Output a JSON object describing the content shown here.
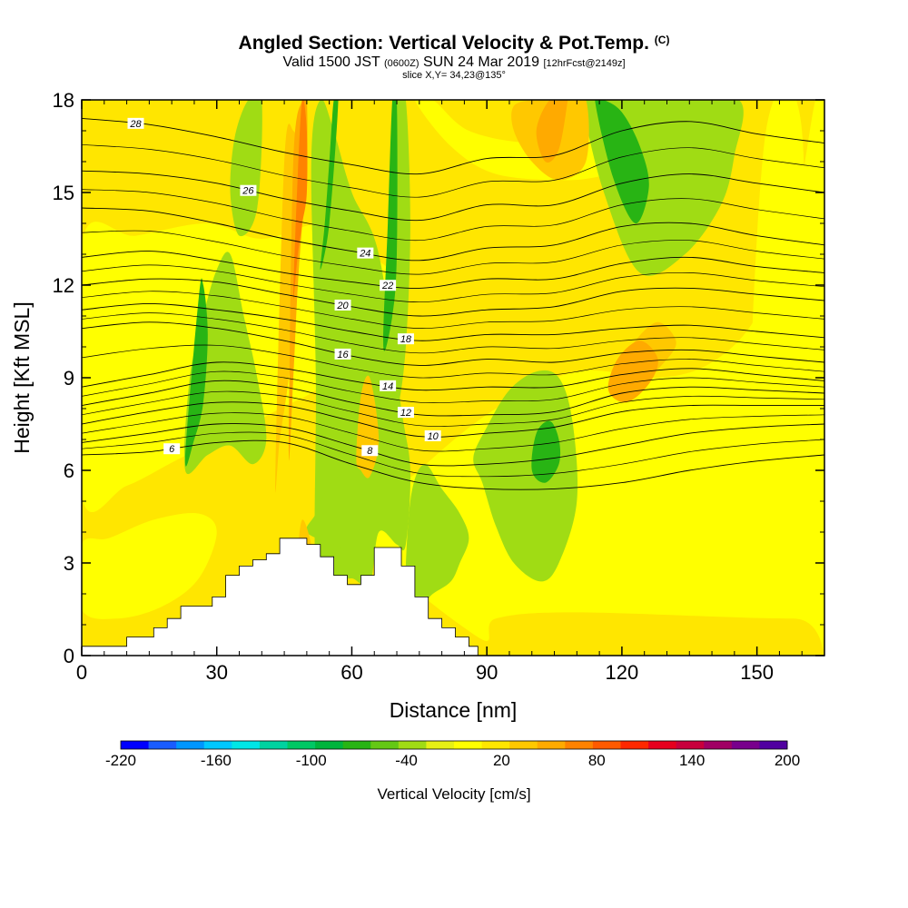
{
  "header": {
    "title": "Angled Section: Vertical Velocity & Pot.Temp.",
    "title_mark": "(C)",
    "valid_prefix": "Valid 1500 JST",
    "valid_utc": "(0600Z)",
    "valid_date": "SUN 24 Mar 2019",
    "forecast": "[12hrFcst@2149z]",
    "slice": "slice X,Y= 34,23@135°"
  },
  "chart_data": {
    "type": "heatmap",
    "xlabel": "Distance [nm]",
    "ylabel": "Height [Kft MSL]",
    "xlim": [
      0,
      165
    ],
    "ylim": [
      0,
      18
    ],
    "x_ticks": [
      0,
      30,
      60,
      90,
      120,
      150
    ],
    "y_ticks": [
      0,
      3,
      6,
      9,
      12,
      15,
      18
    ],
    "colorbar": {
      "title": "Vertical Velocity [cm/s]",
      "tick_labels": [
        -220,
        -160,
        -100,
        -40,
        20,
        80,
        140,
        200
      ],
      "colors": [
        "#0000ff",
        "#1a5cff",
        "#0096ff",
        "#00c8ff",
        "#00e6e6",
        "#00d2a0",
        "#00c864",
        "#00b43c",
        "#28b414",
        "#64c814",
        "#a0dc14",
        "#e6f014",
        "#ffff00",
        "#ffe600",
        "#ffc800",
        "#ffaa00",
        "#ff8200",
        "#ff5a00",
        "#ff2800",
        "#e6001e",
        "#c8003c",
        "#a00064",
        "#78008c",
        "#5000a0"
      ]
    },
    "velocity_field": {
      "background_color": "#ffe600",
      "regions": [
        {
          "color": "#ffff00",
          "x": [
            88,
            92,
            110,
            158,
            165,
            165,
            163,
            158,
            150,
            140,
            128,
            110,
            92,
            75,
            62
          ],
          "y": [
            0.6,
            1.2,
            1.4,
            1.2,
            1.5,
            18,
            18,
            14,
            11,
            9.5,
            9,
            9.2,
            8,
            6,
            4
          ]
        },
        {
          "color": "#ffff00",
          "x": [
            0,
            10,
            22,
            34,
            44,
            52,
            58,
            64,
            70,
            64,
            54,
            40,
            28,
            12,
            0
          ],
          "y": [
            5.2,
            5.5,
            6.4,
            7.2,
            8,
            8.6,
            9.5,
            10,
            12,
            13,
            14,
            13.5,
            14,
            13.6,
            13.4
          ]
        },
        {
          "color": "#ffff00",
          "x": [
            0,
            8,
            18,
            26,
            30,
            26,
            16,
            6,
            0
          ],
          "y": [
            1.5,
            1.2,
            1.6,
            2.5,
            4,
            4.6,
            4.4,
            3.8,
            3.6
          ]
        },
        {
          "color": "#ffff00",
          "x": [
            74,
            82,
            92,
            108,
            118,
            128,
            138,
            144,
            140,
            128,
            114,
            100,
            86,
            78
          ],
          "y": [
            18,
            16.5,
            15.6,
            15.4,
            15.6,
            15.8,
            16.4,
            17.2,
            18,
            17.4,
            16.8,
            16.6,
            17,
            18
          ]
        },
        {
          "color": "#ffff00",
          "x": [
            148,
            152,
            156,
            160,
            160,
            152
          ],
          "y": [
            6,
            6.4,
            5.6,
            5,
            17,
            17
          ]
        },
        {
          "color": "#a0dc14",
          "x": [
            23,
            28,
            33,
            38,
            41,
            39,
            36,
            33,
            30,
            27,
            24
          ],
          "y": [
            6,
            6.5,
            6.8,
            6.2,
            7,
            9,
            11,
            13,
            12.5,
            11,
            9
          ]
        },
        {
          "color": "#a0dc14",
          "x": [
            35,
            39,
            40,
            37,
            34,
            33
          ],
          "y": [
            13.6,
            14.5,
            18,
            18,
            16.8,
            15
          ]
        },
        {
          "color": "#a0dc14",
          "x": [
            52,
            56,
            60,
            64,
            66,
            70,
            72,
            73,
            71,
            66,
            60,
            56,
            53,
            51,
            52
          ],
          "y": [
            2.6,
            2.4,
            2.5,
            2.3,
            4,
            3.6,
            3.6,
            6,
            8,
            13,
            15,
            17,
            18,
            16,
            9
          ]
        },
        {
          "color": "#a0dc14",
          "x": [
            56,
            60,
            62,
            60,
            55,
            52,
            50
          ],
          "y": [
            3.6,
            3.4,
            4.6,
            6,
            5.5,
            4.6,
            4
          ]
        },
        {
          "color": "#a0dc14",
          "x": [
            68,
            70,
            72,
            73,
            72,
            70,
            68
          ],
          "y": [
            9,
            8,
            10,
            14,
            18,
            18,
            13
          ]
        },
        {
          "color": "#a0dc14",
          "x": [
            72,
            75,
            78,
            82,
            84,
            86,
            84,
            80,
            76,
            73
          ],
          "y": [
            1.8,
            1.6,
            2,
            2.4,
            3,
            3.8,
            4.6,
            5.4,
            6.2,
            5
          ]
        },
        {
          "color": "#a0dc14",
          "x": [
            89,
            92,
            96,
            102,
            106,
            110,
            109,
            106,
            101,
            95,
            90,
            87
          ],
          "y": [
            5.6,
            4.2,
            3,
            2.4,
            3,
            5,
            7.6,
            9,
            9.2,
            8.6,
            7.4,
            6.4
          ]
        },
        {
          "color": "#a0dc14",
          "x": [
            111,
            116,
            124,
            134,
            142,
            145,
            146,
            130,
            116,
            112
          ],
          "y": [
            18,
            15,
            12.4,
            13,
            14.6,
            16.2,
            18,
            18,
            18,
            18
          ]
        },
        {
          "color": "#28b414",
          "x": [
            23,
            25,
            27,
            28,
            27,
            26
          ],
          "y": [
            6.4,
            7,
            8.2,
            10.4,
            12,
            11.6
          ]
        },
        {
          "color": "#28b414",
          "x": [
            53,
            55,
            57,
            56,
            55,
            54
          ],
          "y": [
            12.5,
            14,
            18,
            18,
            16,
            14
          ]
        },
        {
          "color": "#28b414",
          "x": [
            67,
            69,
            70,
            70,
            69,
            68
          ],
          "y": [
            10,
            11,
            13,
            18,
            18,
            14
          ]
        },
        {
          "color": "#28b414",
          "x": [
            100,
            103,
            106,
            106,
            104,
            101
          ],
          "y": [
            6,
            5.6,
            6.2,
            7,
            7.6,
            7.2
          ]
        },
        {
          "color": "#28b414",
          "x": [
            114,
            118,
            123,
            126,
            124,
            120,
            116
          ],
          "y": [
            18,
            15.5,
            14,
            15.2,
            16.5,
            17.6,
            18
          ]
        },
        {
          "color": "#ffc800",
          "x": [
            43,
            44,
            46,
            48,
            49,
            47,
            45
          ],
          "y": [
            5.8,
            7,
            9,
            12,
            15.6,
            17,
            16
          ]
        },
        {
          "color": "#ffc800",
          "x": [
            48,
            50,
            52,
            51,
            49,
            48
          ],
          "y": [
            1.4,
            1.8,
            2.4,
            3.6,
            4.4,
            3.2
          ]
        },
        {
          "color": "#ffc800",
          "x": [
            61,
            62,
            64,
            66,
            64,
            62
          ],
          "y": [
            6.4,
            6,
            5.8,
            7,
            9,
            8.4
          ]
        },
        {
          "color": "#ffc800",
          "x": [
            96,
            100,
            106,
            112,
            112,
            107,
            101,
            96
          ],
          "y": [
            17,
            16,
            15.4,
            16,
            18,
            18,
            18,
            17.8
          ]
        },
        {
          "color": "#ffc800",
          "x": [
            120,
            125,
            130,
            132,
            128,
            123
          ],
          "y": [
            9.4,
            9,
            9.6,
            10.2,
            10.8,
            10.2
          ]
        },
        {
          "color": "#ffaa00",
          "x": [
            46,
            47,
            48,
            49,
            50,
            50,
            49,
            47
          ],
          "y": [
            6.6,
            9,
            12,
            14,
            16,
            18,
            18,
            16
          ]
        },
        {
          "color": "#ffaa00",
          "x": [
            101,
            103,
            106,
            108,
            108,
            104
          ],
          "y": [
            17,
            16,
            16.4,
            18,
            18,
            18
          ]
        },
        {
          "color": "#ffaa00",
          "x": [
            117,
            121,
            126,
            128,
            124,
            119
          ],
          "y": [
            8.6,
            8.2,
            8.8,
            9.6,
            10.2,
            9.6
          ]
        },
        {
          "color": "#ff8200",
          "x": [
            47,
            48,
            49,
            50,
            50,
            49,
            48
          ],
          "y": [
            11.6,
            13,
            14,
            15,
            17,
            18,
            15.6
          ]
        }
      ]
    },
    "terrain": {
      "color": "#ffffff",
      "x": [
        0,
        3,
        6,
        10,
        13,
        16,
        19,
        22,
        26,
        29,
        32,
        35,
        38,
        41,
        44,
        47,
        50,
        53,
        56,
        59,
        62,
        65,
        68,
        71,
        74,
        77,
        80,
        83,
        86,
        88
      ],
      "height": [
        0.3,
        0.3,
        0.3,
        0.6,
        0.6,
        0.9,
        1.2,
        1.6,
        1.6,
        1.9,
        2.6,
        2.9,
        3.1,
        3.3,
        3.8,
        3.8,
        3.6,
        3.2,
        2.6,
        2.3,
        2.6,
        3.5,
        3.5,
        2.9,
        1.9,
        1.2,
        0.9,
        0.6,
        0.3,
        0.3
      ]
    },
    "theta_contours": [
      {
        "level": 6,
        "label": "6",
        "y": [
          6.5,
          6.6,
          6.9,
          6.9,
          6.2,
          5.6,
          5.4,
          5.4,
          5.6,
          6,
          6.3,
          6.5
        ],
        "label_x": 20
      },
      {
        "level": 8,
        "label": "8",
        "y": [
          6.9,
          7.2,
          7.5,
          7.4,
          6.8,
          6.2,
          6.2,
          6.4,
          6.8,
          7.2,
          7.4,
          7.5
        ],
        "label_x": 64
      },
      {
        "level": 10,
        "label": "10",
        "y": [
          7.5,
          7.9,
          8.2,
          8.1,
          7.6,
          7.1,
          7.2,
          7.4,
          7.9,
          8.1,
          8.1,
          8.1
        ],
        "label_x": 78
      },
      {
        "level": 12,
        "label": "12",
        "y": [
          8.1,
          8.5,
          8.9,
          8.7,
          8.2,
          7.8,
          7.8,
          7.9,
          8.5,
          8.7,
          8.6,
          8.5
        ],
        "label_x": 72
      },
      {
        "level": 14,
        "label": "14",
        "y": [
          8.7,
          9.1,
          9.5,
          9.3,
          8.9,
          8.6,
          8.7,
          8.7,
          9.1,
          9.3,
          9.1,
          8.9
        ],
        "label_x": 68
      },
      {
        "level": 16,
        "label": "16",
        "y": [
          10.6,
          10.8,
          10.6,
          10.2,
          9.7,
          9.4,
          9.6,
          9.5,
          9.8,
          9.9,
          9.7,
          9.5
        ],
        "label_x": 58
      },
      {
        "level": 18,
        "label": "18",
        "y": [
          11.2,
          11.4,
          11.2,
          10.9,
          10.5,
          10.2,
          10.4,
          10.4,
          10.6,
          10.7,
          10.5,
          10.3
        ],
        "label_x": 72
      },
      {
        "level": 20,
        "label": "20",
        "y": [
          12,
          12.2,
          12.1,
          11.7,
          11.3,
          11,
          11.2,
          11.3,
          11.8,
          11.9,
          11.7,
          11.5
        ],
        "label_x": 58
      },
      {
        "level": 22,
        "label": "22",
        "y": [
          12.9,
          13.1,
          12.8,
          12.4,
          12.1,
          11.9,
          12.2,
          12.2,
          12.7,
          12.9,
          12.6,
          12.4
        ],
        "label_x": 68
      },
      {
        "level": 24,
        "label": "24",
        "y": [
          14.5,
          14.4,
          14,
          13.5,
          13.1,
          12.8,
          13.2,
          13.3,
          13.9,
          14,
          13.6,
          13.3
        ],
        "label_x": 63
      },
      {
        "level": 26,
        "label": "26",
        "y": [
          15.7,
          15.6,
          15.3,
          14.8,
          14.4,
          14.1,
          14.6,
          14.6,
          15.3,
          15.6,
          15.3,
          15
        ],
        "label_x": 37
      },
      {
        "level": 28,
        "label": "28",
        "y": [
          17.4,
          17.2,
          16.8,
          16.3,
          15.9,
          15.6,
          16.1,
          16.2,
          17,
          17.3,
          16.9,
          16.6
        ],
        "label_x": 12
      }
    ],
    "contour_x": [
      0,
      15,
      30,
      40,
      46,
      52,
      60,
      66,
      75,
      90,
      105,
      120,
      135,
      150,
      165
    ],
    "contour_shape_x": [
      0,
      15,
      30,
      45,
      60,
      75,
      90,
      105,
      120,
      135,
      150,
      165
    ]
  }
}
